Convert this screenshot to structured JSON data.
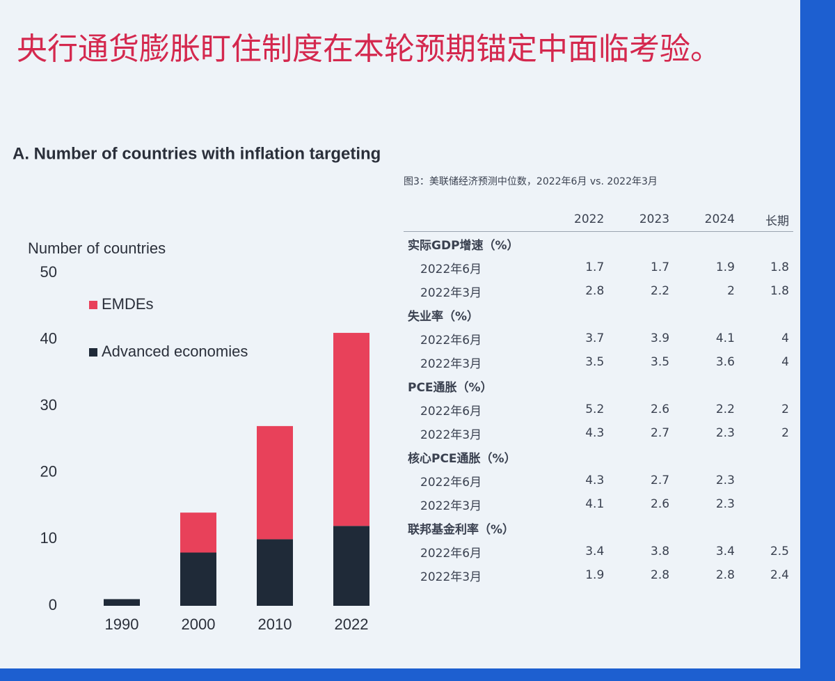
{
  "title": "央行通货膨胀盯住制度在本轮预期锚定中面临考验。",
  "chart_data": {
    "type": "stacked_bar",
    "title": "A. Number of countries with inflation targeting",
    "y_label": "Number of countries",
    "categories": [
      "1990",
      "2000",
      "2010",
      "2022"
    ],
    "series": [
      {
        "name": "EMDEs",
        "color": "#e8415a",
        "values": [
          0,
          6,
          17,
          29
        ]
      },
      {
        "name": "Advanced economies",
        "color": "#1f2a38",
        "values": [
          1,
          8,
          10,
          12
        ]
      }
    ],
    "ylim": [
      0,
      50
    ],
    "yticks": [
      0,
      10,
      20,
      30,
      40,
      50
    ],
    "grid": false,
    "legend": "top-left"
  },
  "table": {
    "caption": "图3：美联储经济预测中位数，2022年6月 vs. 2022年3月",
    "header": [
      "2022",
      "2023",
      "2024",
      "长期"
    ],
    "sections": [
      {
        "title": "实际GDP增速（%）",
        "rows": [
          {
            "label": "2022年6月",
            "values": [
              "1.7",
              "1.7",
              "1.9",
              "1.8"
            ]
          },
          {
            "label": "2022年3月",
            "values": [
              "2.8",
              "2.2",
              "2",
              "1.8"
            ]
          }
        ]
      },
      {
        "title": "失业率（%）",
        "rows": [
          {
            "label": "2022年6月",
            "values": [
              "3.7",
              "3.9",
              "4.1",
              "4"
            ]
          },
          {
            "label": "2022年3月",
            "values": [
              "3.5",
              "3.5",
              "3.6",
              "4"
            ]
          }
        ]
      },
      {
        "title": "PCE通胀（%）",
        "rows": [
          {
            "label": "2022年6月",
            "values": [
              "5.2",
              "2.6",
              "2.2",
              "2"
            ]
          },
          {
            "label": "2022年3月",
            "values": [
              "4.3",
              "2.7",
              "2.3",
              "2"
            ]
          }
        ]
      },
      {
        "title": "核心PCE通胀（%）",
        "rows": [
          {
            "label": "2022年6月",
            "values": [
              "4.3",
              "2.7",
              "2.3"
            ]
          },
          {
            "label": "2022年3月",
            "values": [
              "4.1",
              "2.6",
              "2.3"
            ]
          }
        ]
      },
      {
        "title": "联邦基金利率（%）",
        "rows": [
          {
            "label": "2022年6月",
            "values": [
              "3.4",
              "3.8",
              "3.4",
              "2.5"
            ]
          },
          {
            "label": "2022年3月",
            "values": [
              "1.9",
              "2.8",
              "2.8",
              "2.4"
            ]
          }
        ]
      }
    ]
  }
}
